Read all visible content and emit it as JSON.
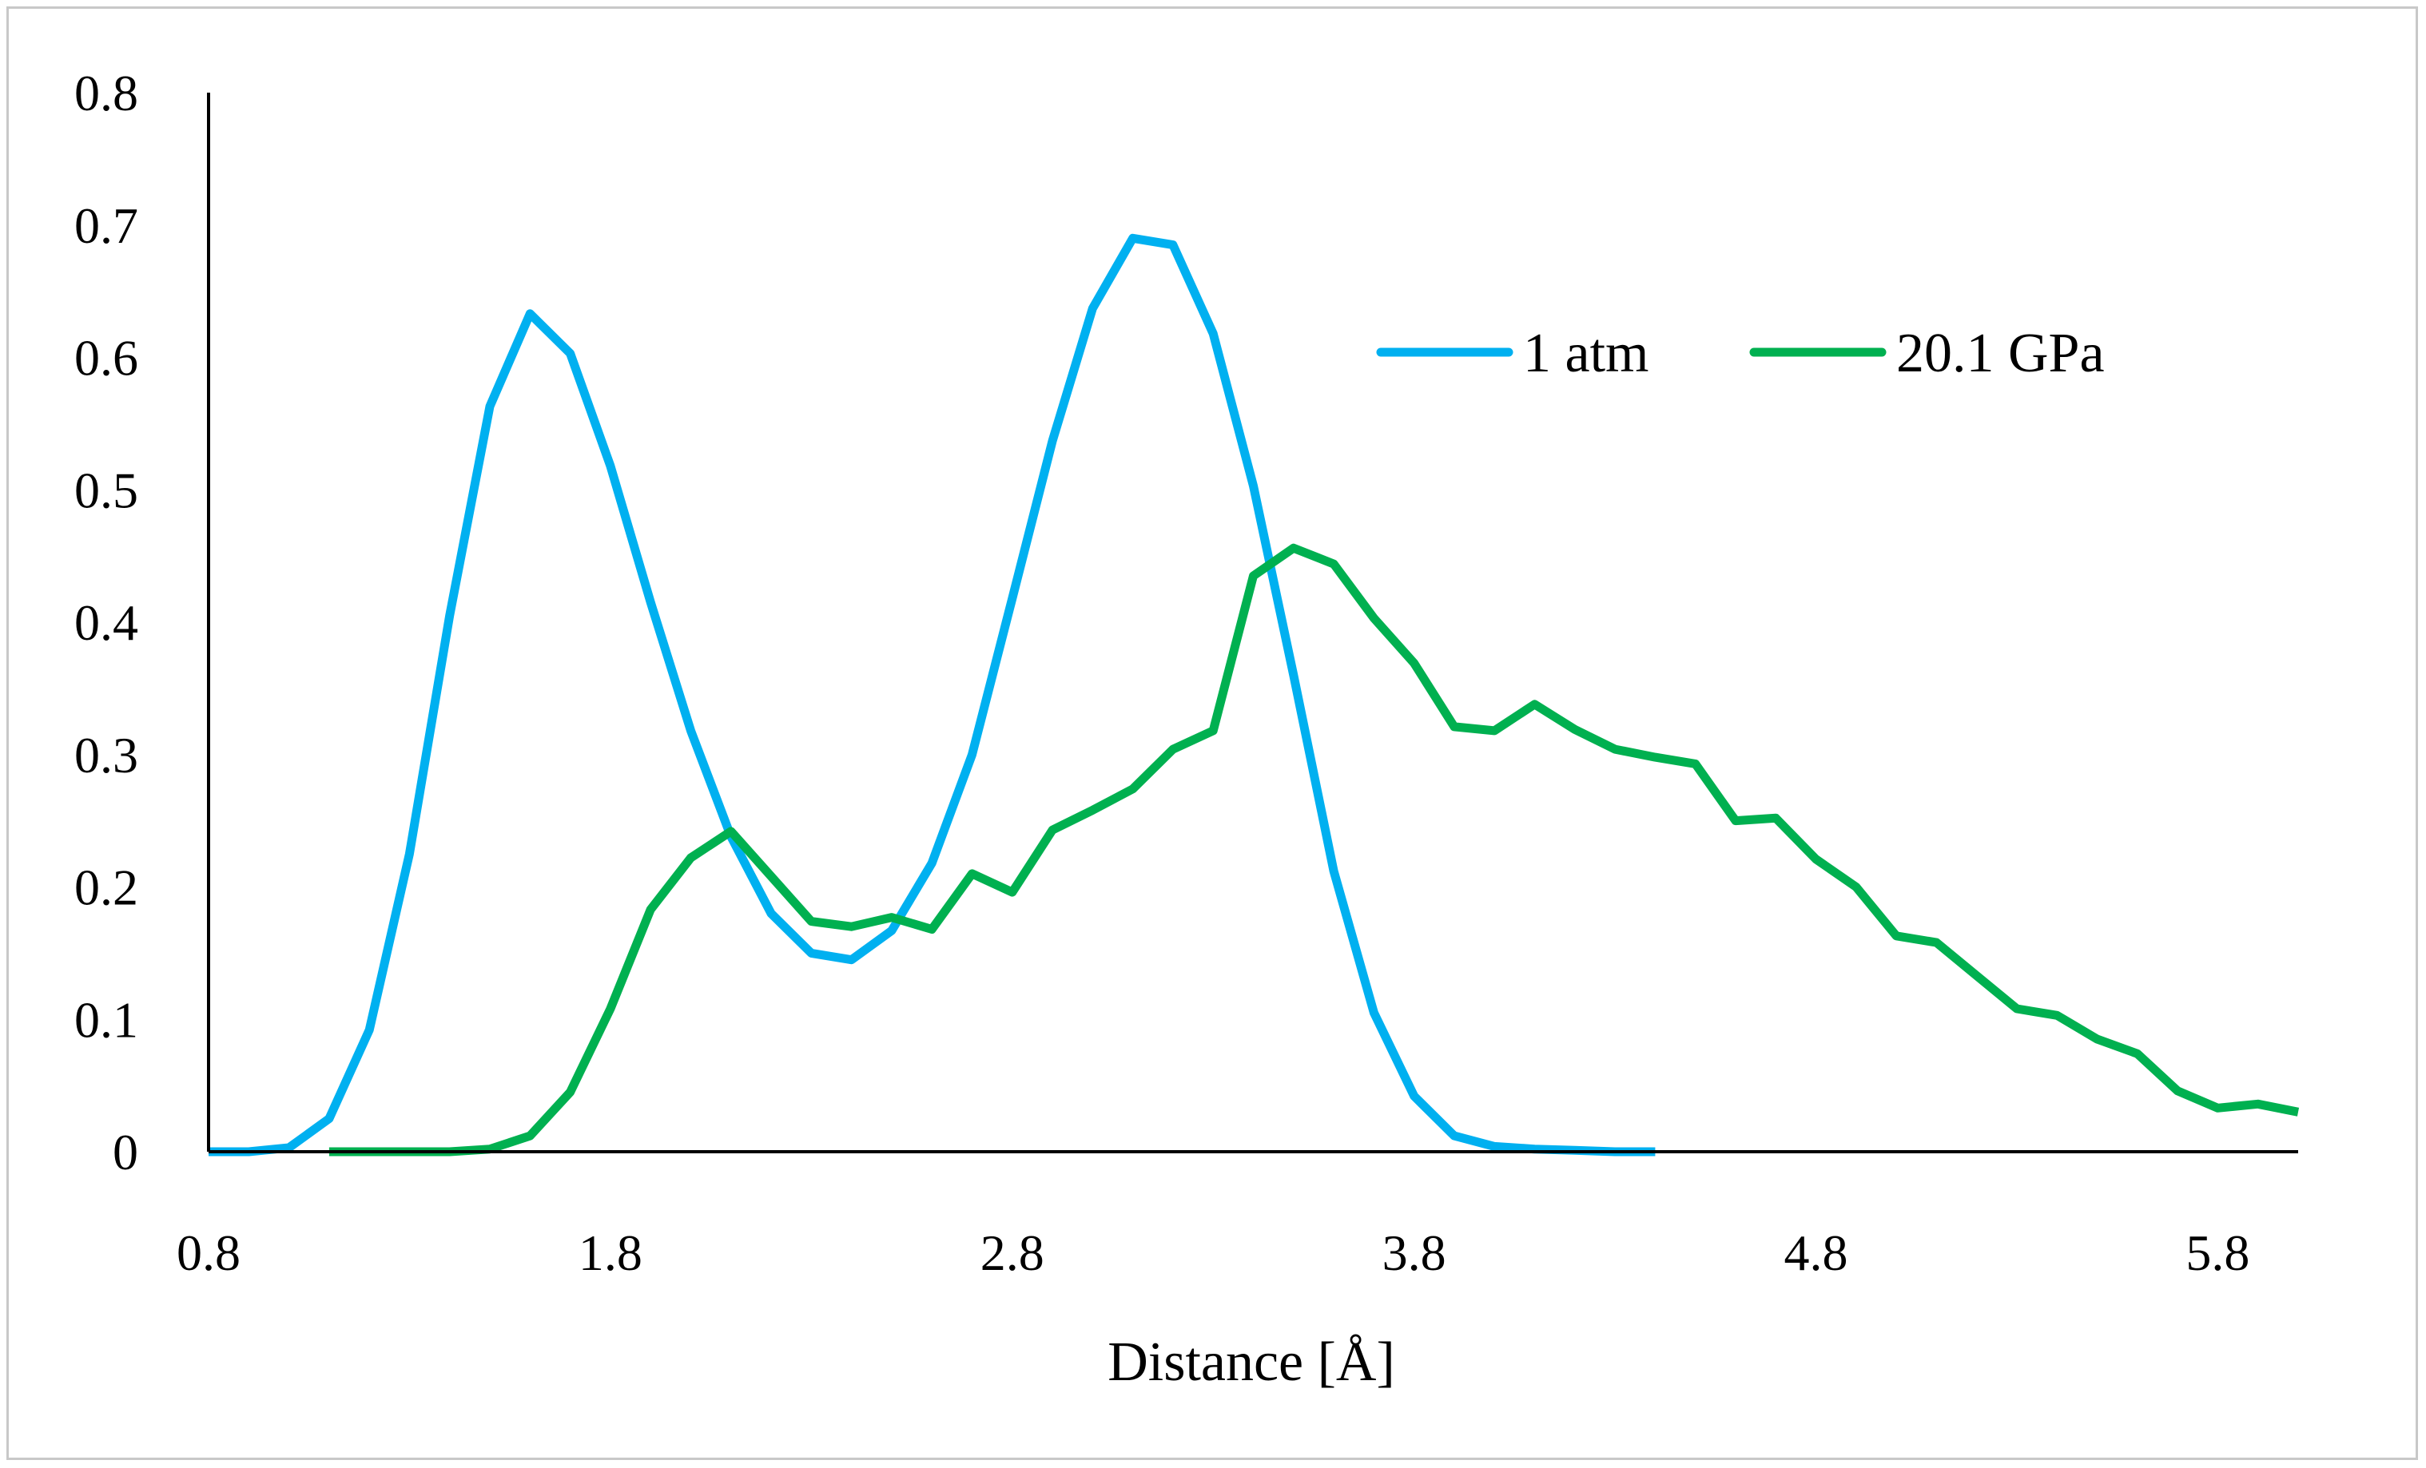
{
  "chart_data": {
    "type": "line",
    "title": "",
    "xlabel": "Distance [Å]",
    "ylabel": "",
    "xlim": [
      0.8,
      6.0
    ],
    "ylim": [
      0,
      0.8
    ],
    "x_ticks": [
      0.8,
      1.8,
      2.8,
      3.8,
      4.8,
      5.8
    ],
    "x_tick_labels": [
      "0.8",
      "1.8",
      "2.8",
      "3.8",
      "4.8",
      "5.8"
    ],
    "y_ticks": [
      0,
      0.1,
      0.2,
      0.3,
      0.4,
      0.5,
      0.6,
      0.7,
      0.8
    ],
    "y_tick_labels": [
      "0",
      "0.1",
      "0.2",
      "0.3",
      "0.4",
      "0.5",
      "0.6",
      "0.7",
      "0.8"
    ],
    "grid": false,
    "legend_position": "top-right",
    "series": [
      {
        "name": "1 atm",
        "color": "#00B0F0",
        "x": [
          0.8,
          0.9,
          1.0,
          1.1,
          1.2,
          1.3,
          1.4,
          1.5,
          1.6,
          1.7,
          1.8,
          1.9,
          2.0,
          2.1,
          2.2,
          2.3,
          2.4,
          2.5,
          2.6,
          2.7,
          2.8,
          2.9,
          3.0,
          3.1,
          3.2,
          3.3,
          3.4,
          3.5,
          3.6,
          3.7,
          3.8,
          3.9,
          4.0,
          4.1,
          4.2,
          4.3,
          4.4
        ],
        "values": [
          0.0,
          0.0,
          0.003,
          0.025,
          0.092,
          0.225,
          0.405,
          0.563,
          0.633,
          0.603,
          0.518,
          0.415,
          0.318,
          0.238,
          0.18,
          0.15,
          0.145,
          0.167,
          0.218,
          0.3,
          0.418,
          0.537,
          0.637,
          0.69,
          0.685,
          0.618,
          0.503,
          0.36,
          0.212,
          0.105,
          0.042,
          0.012,
          0.004,
          0.002,
          0.001,
          0.0,
          0.0
        ]
      },
      {
        "name": "20.1 GPa",
        "color": "#00B050",
        "x": [
          1.1,
          1.2,
          1.3,
          1.4,
          1.5,
          1.6,
          1.7,
          1.8,
          1.9,
          2.0,
          2.1,
          2.2,
          2.3,
          2.4,
          2.5,
          2.6,
          2.7,
          2.8,
          2.9,
          3.0,
          3.1,
          3.2,
          3.3,
          3.4,
          3.5,
          3.6,
          3.7,
          3.8,
          3.9,
          4.0,
          4.1,
          4.2,
          4.3,
          4.4,
          4.5,
          4.6,
          4.7,
          4.8,
          4.9,
          5.0,
          5.1,
          5.2,
          5.3,
          5.4,
          5.5,
          5.6,
          5.7,
          5.8,
          5.9,
          6.0
        ],
        "values": [
          0.0,
          0.0,
          0.0,
          0.0,
          0.002,
          0.012,
          0.045,
          0.108,
          0.183,
          0.222,
          0.242,
          0.208,
          0.174,
          0.17,
          0.177,
          0.168,
          0.21,
          0.196,
          0.243,
          0.258,
          0.274,
          0.304,
          0.318,
          0.435,
          0.456,
          0.444,
          0.403,
          0.369,
          0.321,
          0.318,
          0.338,
          0.319,
          0.304,
          0.298,
          0.293,
          0.25,
          0.252,
          0.221,
          0.2,
          0.163,
          0.158,
          0.133,
          0.108,
          0.103,
          0.085,
          0.074,
          0.046,
          0.033,
          0.036,
          0.03
        ]
      }
    ]
  }
}
